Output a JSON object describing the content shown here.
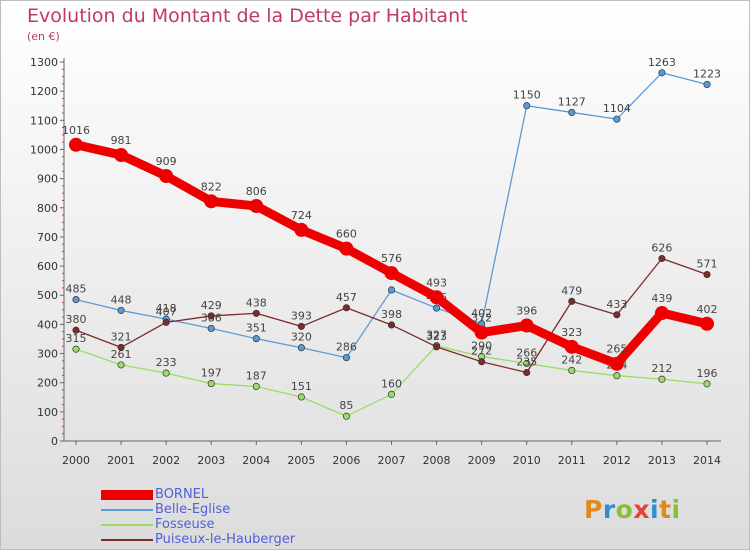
{
  "header": {
    "title": "Evolution du Montant de la Dette par Habitant",
    "subtitle": "(en €)"
  },
  "logo": {
    "text": "Proxiti",
    "letters": [
      {
        "ch": "P",
        "color": "#e08a1e"
      },
      {
        "ch": "r",
        "color": "#2f8fd1"
      },
      {
        "ch": "o",
        "color": "#8bbf32"
      },
      {
        "ch": "x",
        "color": "#e2433a"
      },
      {
        "ch": "i",
        "color": "#2f8fd1"
      },
      {
        "ch": "t",
        "color": "#e08a1e"
      },
      {
        "ch": "i",
        "color": "#8bbf32"
      }
    ]
  },
  "chart_data": {
    "type": "line",
    "title": "Evolution du Montant de la Dette par Habitant",
    "ylabel": "(en €)",
    "xlabel": "",
    "x": [
      "2000",
      "2001",
      "2002",
      "2003",
      "2004",
      "2005",
      "2006",
      "2007",
      "2008",
      "2009",
      "2010",
      "2011",
      "2012",
      "2013",
      "2014"
    ],
    "ylim": [
      0,
      1300
    ],
    "yticks": [
      0,
      100,
      200,
      300,
      400,
      500,
      600,
      700,
      800,
      900,
      1000,
      1100,
      1200,
      1300
    ],
    "grid": false,
    "legend_position": "bottom-left",
    "series": [
      {
        "name": "BORNEL",
        "color": "#ee0000",
        "thick": true,
        "values": [
          1016,
          981,
          909,
          822,
          806,
          724,
          660,
          576,
          493,
          372,
          396,
          323,
          265,
          439,
          402
        ]
      },
      {
        "name": "Belle-Eglise",
        "color": "#5b9bd5",
        "thick": false,
        "values": [
          485,
          448,
          418,
          386,
          351,
          320,
          286,
          518,
          456,
          402,
          1150,
          1127,
          1104,
          1263,
          1223
        ],
        "labeled": [
          true,
          true,
          true,
          true,
          true,
          true,
          true,
          false,
          true,
          true,
          true,
          true,
          true,
          true,
          true
        ]
      },
      {
        "name": "Fosseuse",
        "color": "#99dd66",
        "thick": false,
        "values": [
          315,
          261,
          233,
          197,
          187,
          151,
          85,
          160,
          327,
          290,
          266,
          242,
          224,
          212,
          196
        ],
        "labeled": [
          true,
          true,
          true,
          true,
          true,
          true,
          true,
          true,
          true,
          true,
          true,
          true,
          true,
          true,
          true
        ]
      },
      {
        "name": "Puiseux-le-Hauberger",
        "color": "#7d2a2a",
        "thick": false,
        "values": [
          380,
          321,
          407,
          429,
          438,
          393,
          457,
          398,
          323,
          272,
          235,
          479,
          433,
          626,
          571
        ],
        "labeled": [
          true,
          true,
          true,
          true,
          true,
          true,
          true,
          true,
          true,
          true,
          true,
          true,
          true,
          true,
          true
        ]
      }
    ]
  }
}
